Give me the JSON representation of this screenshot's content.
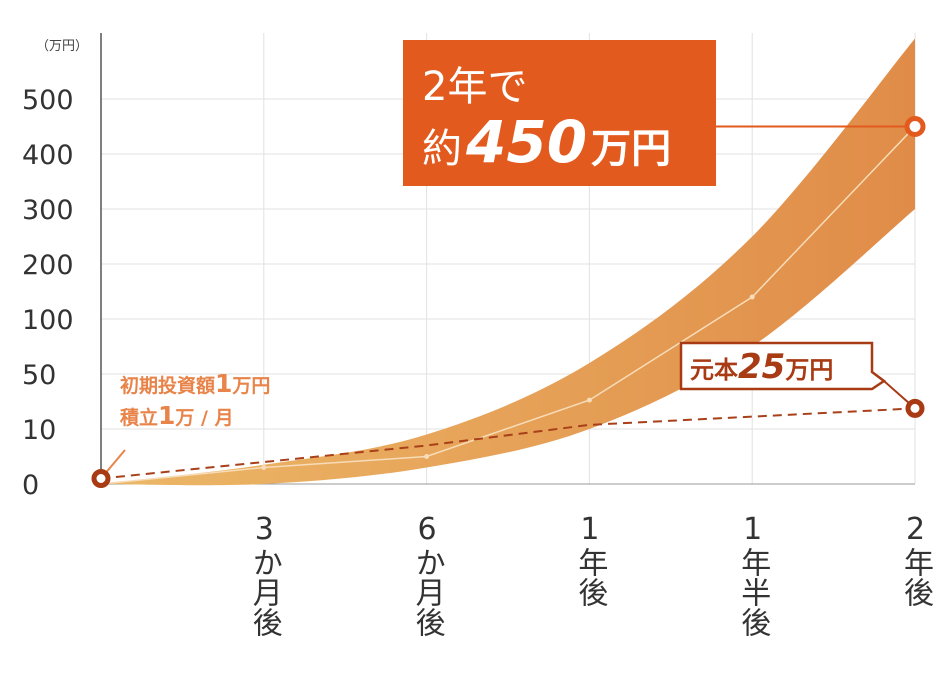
{
  "unit_label": "（万円）",
  "chart_data": {
    "type": "line",
    "categories": [
      null,
      "3か月後",
      "6か月後",
      "1年後",
      "1年半後",
      "2年後"
    ],
    "ylim": [
      0,
      620
    ],
    "yticks": [
      0,
      10,
      50,
      100,
      200,
      300,
      400,
      500
    ],
    "grid": true,
    "band": {
      "color": "#e9a454",
      "upper": [
        0,
        3.5,
        9,
        60,
        250,
        610
      ],
      "lower": [
        0,
        0,
        3,
        10,
        75,
        300
      ]
    },
    "series": [
      {
        "color": "#f7dcb8",
        "values": [
          0,
          3,
          5,
          31,
          140,
          450
        ]
      },
      {
        "color": "#a8401a",
        "dash": true,
        "values": [
          1,
          4,
          7,
          13,
          19,
          25
        ]
      }
    ]
  },
  "callouts": {
    "total": {
      "line1": "2年で",
      "pre": "約",
      "num": "450",
      "post": "万円"
    },
    "principal": {
      "pre": "元本",
      "num": "25",
      "post": "万円"
    },
    "initial": {
      "line1_pre": "初期投資額",
      "line1_num": "1",
      "line1_post": "万円",
      "line2_pre": "積立",
      "line2_num": "1",
      "line2_post": "万 / 月"
    }
  }
}
